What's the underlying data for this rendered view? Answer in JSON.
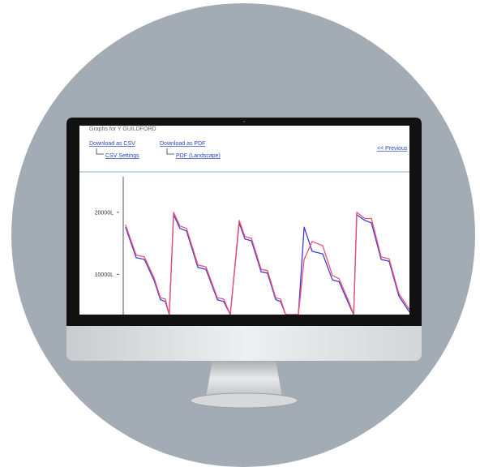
{
  "screen": {
    "title": "Graphs for Y GUILDFORD",
    "links": [
      "Download as CSV",
      "Download as PDF"
    ],
    "sublinks": [
      "CSV Settings",
      "PDF (Landscape)"
    ],
    "nav": "<< Previous"
  },
  "chart_data": {
    "type": "line",
    "x": [
      0.8,
      4.5,
      7.4,
      10.8,
      13.0,
      14.7,
      16.1,
      17.6,
      19.8,
      22.1,
      26.1,
      28.9,
      32.9,
      35.1,
      37.4,
      40.5,
      42.5,
      44.8,
      48.2,
      50.4,
      53.3,
      55.0,
      56.7,
      61.2,
      63.2,
      66.0,
      69.7,
      73.1,
      75.4,
      78.8,
      80.5,
      81.6,
      84.4,
      86.7,
      90.1,
      92.9,
      96.3,
      100.0
    ],
    "series": [
      {
        "color": "#3b3bdc",
        "values": [
          17600,
          12700,
          12400,
          9000,
          5900,
          5600,
          3500,
          19600,
          17400,
          17000,
          11100,
          10800,
          5900,
          5600,
          3500,
          18300,
          15700,
          15400,
          10400,
          10200,
          5900,
          5600,
          3500,
          3500,
          17600,
          13700,
          13300,
          9100,
          8800,
          5200,
          3500,
          19600,
          18700,
          18300,
          12400,
          12100,
          6500,
          3900
        ]
      },
      {
        "color": "#f0506e",
        "values": [
          18000,
          13100,
          12800,
          9400,
          6200,
          6000,
          3500,
          20000,
          17800,
          17400,
          11500,
          11200,
          6200,
          6000,
          3500,
          18700,
          16100,
          15800,
          10800,
          10600,
          6200,
          6000,
          3500,
          3500,
          12400,
          15300,
          14600,
          9800,
          9300,
          5600,
          3500,
          20000,
          19000,
          19000,
          12800,
          12500,
          6900,
          4300
        ]
      }
    ],
    "xlim": [
      0,
      100
    ],
    "ylim": [
      3500,
      26000
    ],
    "yticks": [
      {
        "value": 10000,
        "label": "10000L"
      },
      {
        "value": 20000,
        "label": "20000L"
      }
    ]
  }
}
